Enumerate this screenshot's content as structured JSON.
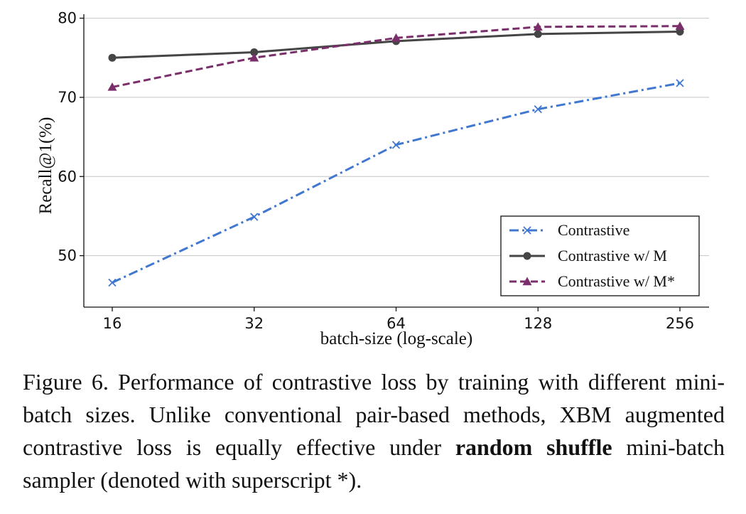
{
  "chart_data": {
    "type": "line",
    "x": [
      16,
      32,
      64,
      128,
      256
    ],
    "xscale": "log",
    "xlabel": "batch-size (log-scale)",
    "ylabel": "Recall@1(%)",
    "ylim": [
      43.5,
      80.5
    ],
    "yticks": [
      50,
      60,
      70,
      80
    ],
    "grid": "horizontal",
    "legend_position": "lower-right",
    "series": [
      {
        "name": "Contrastive",
        "values": [
          46.6,
          54.9,
          64.0,
          68.5,
          71.8
        ],
        "color": "#3f77d1",
        "dash": "dashdot",
        "marker": "x"
      },
      {
        "name": "Contrastive w/ M",
        "values": [
          75.0,
          75.7,
          77.1,
          78.0,
          78.3
        ],
        "color": "#454545",
        "dash": "solid",
        "marker": "circle"
      },
      {
        "name": "Contrastive w/ M*",
        "values": [
          71.3,
          75.0,
          77.5,
          78.9,
          79.0
        ],
        "color": "#7a2f6b",
        "dash": "dashed",
        "marker": "triangle"
      }
    ]
  },
  "caption": {
    "prefix": "Figure 6. Performance of contrastive loss by training with different mini-batch sizes.  Unlike conventional pair-based methods, XBM augmented contrastive loss is equally effective under ",
    "bold": "random shuffle",
    "suffix": " mini-batch sampler (denoted with superscript *)."
  }
}
